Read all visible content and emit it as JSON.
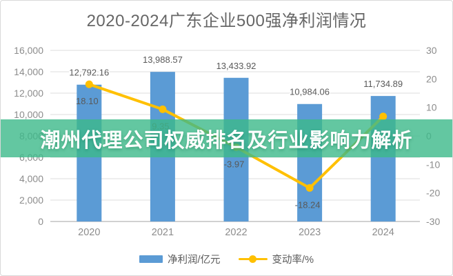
{
  "title": "2020-2024广东企业500强净利润情况",
  "banner": {
    "text": "潮州代理公司权威排名及行业影响力解析",
    "background": "#3CB98A",
    "background_rgba": "rgba(60,185,138,0.8)",
    "text_color": "#FFFFFF"
  },
  "legend": {
    "items": [
      {
        "label": "净利润/亿元",
        "swatch": "bar",
        "color": "#5B9BD5"
      },
      {
        "label": "变动率/%",
        "swatch": "line-dot",
        "color": "#FFC000"
      }
    ]
  },
  "chart_data": {
    "type": "combo_bar_line",
    "title": "2020-2024广东企业500强净利润情况",
    "categories": [
      "2020",
      "2021",
      "2022",
      "2023",
      "2024"
    ],
    "series": [
      {
        "name": "净利润/亿元",
        "type": "bar",
        "axis": "left",
        "color": "#5B9BD5",
        "values": [
          12792.16,
          13988.57,
          13433.92,
          10984.06,
          11734.89
        ],
        "labels": [
          "12,792.16",
          "13,988.57",
          "13,433.92",
          "10,984.06",
          "11,734.89"
        ]
      },
      {
        "name": "变动率/%",
        "type": "line",
        "axis": "right",
        "color": "#FFC000",
        "values": [
          18.1,
          9.35,
          -3.97,
          -18.24,
          6.84
        ],
        "labels": [
          "18.10",
          "9.35",
          "-3.97",
          "-18.24",
          ""
        ]
      }
    ],
    "left_axis": {
      "min": 0,
      "max": 16000,
      "tick_step": 2000,
      "ticks_bottom_to_top": [
        "0",
        "2,000",
        "4,000",
        "6,000",
        "8,000",
        "10,000",
        "12,000",
        "14,000",
        "16,000"
      ]
    },
    "right_axis": {
      "min": -30,
      "max": 30,
      "tick_step": 10,
      "ticks_top_to_bottom": [
        "30",
        "20",
        "10",
        "0",
        "-10",
        "-20",
        "-30"
      ]
    },
    "grid": true,
    "legend_position": "bottom"
  },
  "colors": {
    "bar": "#5B9BD5",
    "line": "#FFC000",
    "banner_green": "#3CB98A",
    "title_text": "#666666",
    "axis_text": "#8C8C8C",
    "value_text": "#595959",
    "gridline": "#DEDEDE",
    "baseline": "#C2C2C2",
    "border": "#D9D9D9"
  }
}
